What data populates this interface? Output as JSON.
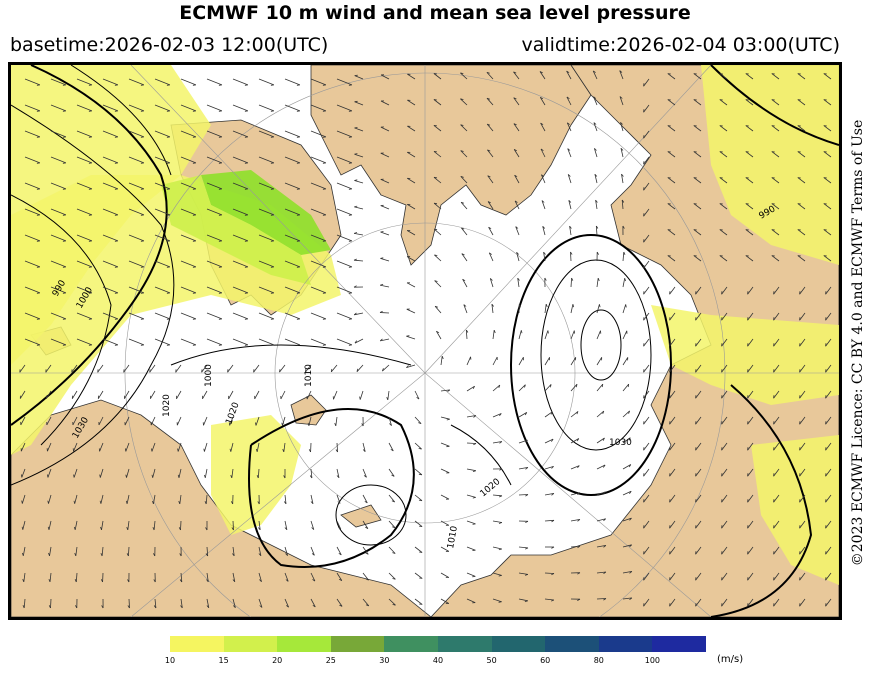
{
  "header": {
    "title": "ECMWF 10 m wind and mean sea level pressure",
    "basetime": "basetime:2026-02-03 12:00(UTC)",
    "validtime": "validtime:2026-02-04 03:00(UTC)"
  },
  "license": "©2023 ECMWF Licence: CC BY 4.0 and ECMWF Terms of Use",
  "map": {
    "isobar_labels": [
      "1030",
      "1020",
      "1010",
      "1000",
      "990",
      "1030",
      "1020",
      "1010",
      "1020",
      "990",
      "1000"
    ],
    "colors": {
      "land": "#e8c89a",
      "ocean": "#ffffff",
      "coast": "#333333",
      "isobar": "#000000",
      "wind_10": "#f3f56a",
      "wind_15": "#cdf04a",
      "wind_20": "#8ee02a"
    }
  },
  "legend": {
    "unit": "(m/s)",
    "ticks": [
      "10",
      "15",
      "20",
      "25",
      "30",
      "40",
      "50",
      "60",
      "80",
      "100"
    ],
    "colors": [
      "#f5f560",
      "#d2f04c",
      "#a6e83a",
      "#78a838",
      "#3f9060",
      "#2e7a6c",
      "#22666e",
      "#1c5078",
      "#1a3a8c",
      "#1e2aa0"
    ]
  }
}
